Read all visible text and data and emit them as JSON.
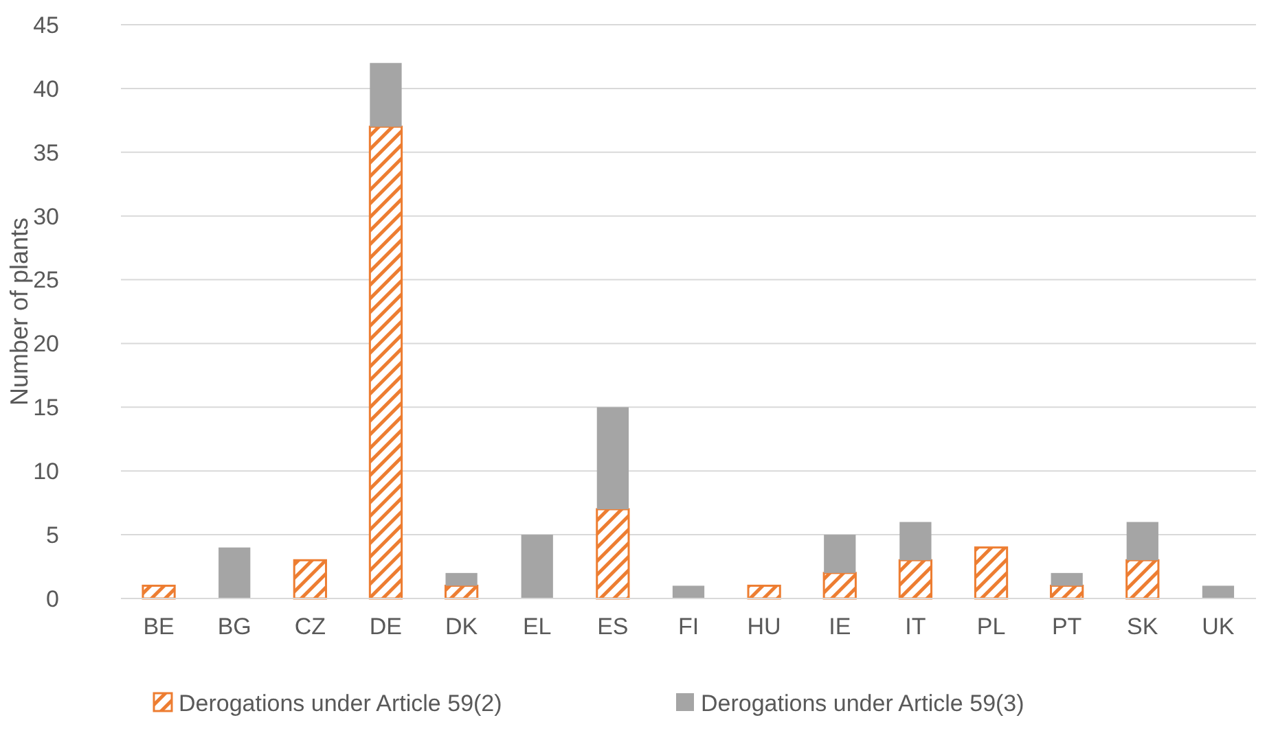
{
  "chart_data": {
    "type": "bar",
    "stacked": true,
    "ylabel": "Number of plants",
    "categories": [
      "BE",
      "BG",
      "CZ",
      "DE",
      "DK",
      "EL",
      "ES",
      "FI",
      "HU",
      "IE",
      "IT",
      "PL",
      "PT",
      "SK",
      "UK"
    ],
    "series": [
      {
        "name": "Derogations under Article 59(2)",
        "color": "#ed7d31",
        "values": [
          1,
          0,
          3,
          37,
          1,
          0,
          7,
          0,
          1,
          2,
          3,
          4,
          1,
          3,
          0
        ]
      },
      {
        "name": "Derogations under Article 59(3)",
        "color": "#a5a5a5",
        "values": [
          0,
          4,
          0,
          5,
          1,
          5,
          8,
          1,
          0,
          3,
          3,
          0,
          1,
          3,
          1
        ]
      }
    ],
    "ylim": [
      0,
      45
    ],
    "yticks": [
      0,
      5,
      10,
      15,
      20,
      25,
      30,
      35,
      40,
      45
    ],
    "grid": "y",
    "legend": "bottom"
  }
}
